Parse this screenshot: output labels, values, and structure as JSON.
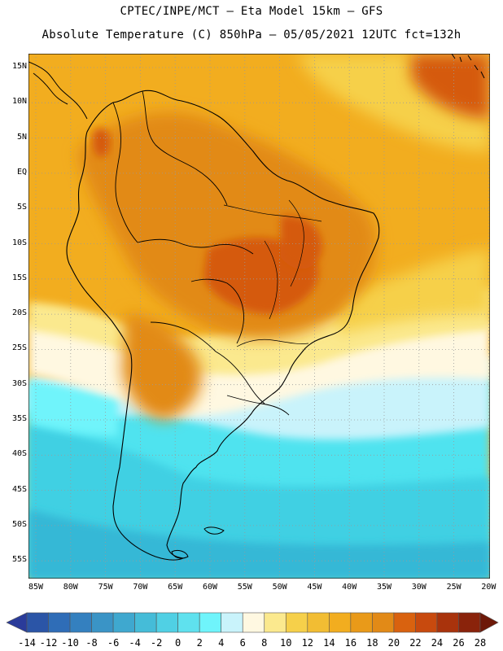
{
  "header": {
    "line1": "CPTEC/INPE/MCT –  Eta Model 15km – GFS",
    "line2": "Absolute Temperature (C) 850hPa – 05/05/2021 12UTC fct=132h"
  },
  "map": {
    "lat_labels": [
      "15N",
      "10N",
      "5N",
      "EQ",
      "5S",
      "10S",
      "15S",
      "20S",
      "25S",
      "30S",
      "35S",
      "40S",
      "45S",
      "50S",
      "55S"
    ],
    "lon_labels": [
      "85W",
      "80W",
      "75W",
      "70W",
      "65W",
      "60W",
      "55W",
      "50W",
      "45W",
      "40W",
      "35W",
      "30W",
      "25W",
      "20W"
    ],
    "colors": {
      "warm_base": "#f2ad1f",
      "warm_hot": "#e28a17",
      "hottest": "#d55a0e",
      "yellow": "#f6d04a",
      "pale_yellow": "#fbe98e",
      "cream": "#fff8e1",
      "light_cyan": "#c9f3fb",
      "cyan": "#6ff4fb",
      "aqua": "#4fe3ef",
      "teal": "#3fd0e3",
      "deep_teal": "#34b8d6",
      "coast": "#000000",
      "grid": "#9a9a9a"
    }
  },
  "colorbar": {
    "labels": [
      "-14",
      "-12",
      "-10",
      "-8",
      "-6",
      "-4",
      "-2",
      "0",
      "2",
      "4",
      "6",
      "8",
      "10",
      "12",
      "14",
      "16",
      "18",
      "20",
      "22",
      "24",
      "26",
      "28"
    ],
    "colors": [
      "#2a3b9a",
      "#2b55a7",
      "#2f6db7",
      "#3480bf",
      "#3a94c6",
      "#3fa8cf",
      "#45bcd8",
      "#50d0e4",
      "#5fe1ee",
      "#6ff4fb",
      "#c9f3fb",
      "#fff8e1",
      "#fbe98e",
      "#f6d04a",
      "#f2bd33",
      "#f2ad1f",
      "#e99a19",
      "#e28a17",
      "#d9620f",
      "#c84a0e",
      "#a9330c",
      "#8a230b",
      "#6d1808"
    ]
  }
}
